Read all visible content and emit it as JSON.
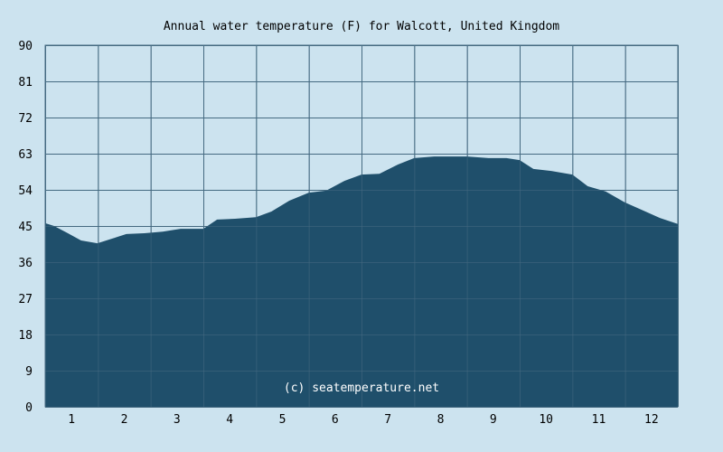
{
  "chart_data": {
    "type": "area",
    "title": "Annual water temperature (F) for Walcott, United Kingdom",
    "xlabel": "",
    "ylabel": "",
    "watermark": "(c) seatemperature.net",
    "xlim": [
      0.5,
      12.5
    ],
    "ylim": [
      0,
      90
    ],
    "x_ticks": [
      "1",
      "2",
      "3",
      "4",
      "5",
      "6",
      "7",
      "8",
      "9",
      "10",
      "11",
      "12"
    ],
    "y_ticks": [
      "0",
      "9",
      "18",
      "27",
      "36",
      "45",
      "54",
      "63",
      "72",
      "81",
      "90"
    ],
    "grid": true,
    "colors": {
      "background": "#cce3ef",
      "fill": "#1f4f6b",
      "grid": "#456a82"
    },
    "x": [
      0.5,
      0.67,
      0.93,
      1.18,
      1.49,
      1.78,
      2.04,
      2.38,
      2.73,
      3.07,
      3.5,
      3.76,
      4.1,
      4.5,
      4.79,
      5.13,
      5.5,
      5.83,
      6.17,
      6.5,
      6.84,
      7.19,
      7.5,
      7.88,
      8.22,
      8.5,
      8.91,
      9.25,
      9.5,
      9.76,
      10.1,
      10.5,
      10.79,
      11.13,
      11.49,
      11.82,
      12.16,
      12.5
    ],
    "values": [
      45.7,
      45,
      43.2,
      41.4,
      40.7,
      41.9,
      43,
      43.2,
      43.6,
      44.3,
      44.3,
      46.6,
      46.8,
      47.2,
      48.6,
      51.3,
      53.3,
      53.8,
      56.2,
      57.8,
      58,
      60.3,
      61.9,
      62.3,
      62.3,
      62.3,
      61.9,
      61.9,
      61.4,
      59.2,
      58.7,
      57.8,
      54.9,
      53.6,
      50.9,
      49,
      47,
      45.5
    ]
  }
}
